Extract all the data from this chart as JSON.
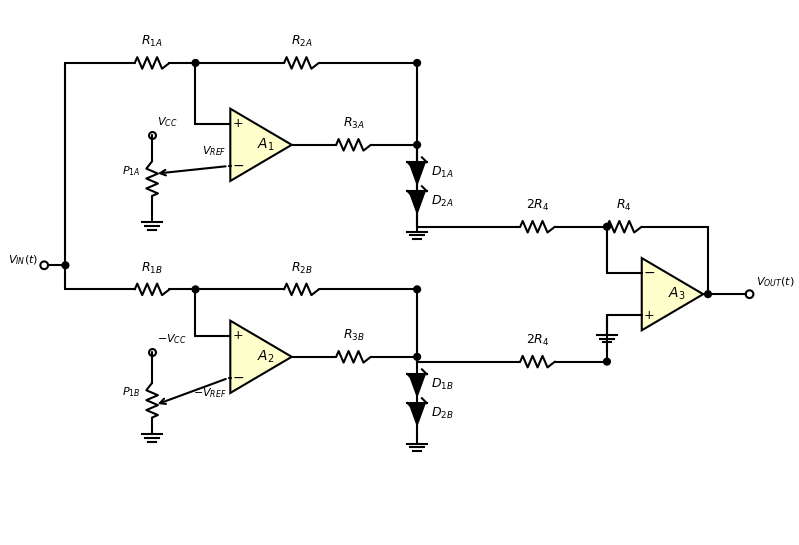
{
  "bg_color": "#ffffff",
  "line_color": "#000000",
  "op_amp_fill": "#ffffcc",
  "figsize": [
    7.99,
    5.45
  ],
  "dpi": 100
}
